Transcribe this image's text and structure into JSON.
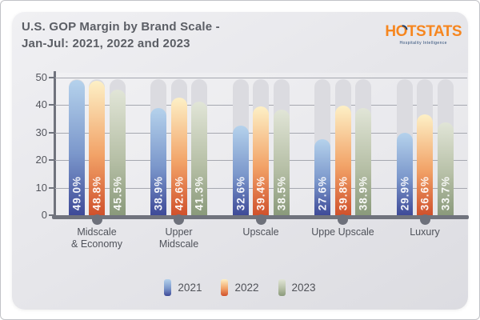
{
  "header": {
    "title_line1": "U.S. GOP Margin by Brand Scale -",
    "title_line2": "Jan-Jul: 2021, 2022 and 2023"
  },
  "logo": {
    "name": "HOTSTATS",
    "parts": {
      "left": "H",
      "o": "O",
      "right": "TSTATS"
    },
    "tagline": "Hospitality Intelligence",
    "orange": "#f6861f",
    "navy": "#1c3f6e"
  },
  "chart_data": {
    "type": "bar",
    "title": "U.S. GOP Margin by Brand Scale - Jan-Jul: 2021, 2022 and 2023",
    "categories": [
      "Midscale & Economy",
      "Upper Midscale",
      "Upscale",
      "Uppe Upscale",
      "Luxury"
    ],
    "category_lines": [
      [
        "Midscale",
        "& Economy"
      ],
      [
        "Upper",
        "Midscale"
      ],
      [
        "Upscale"
      ],
      [
        "Uppe Upscale"
      ],
      [
        "Luxury"
      ]
    ],
    "series": [
      {
        "name": "2021",
        "values": [
          49.0,
          38.9,
          32.6,
          27.6,
          29.9
        ],
        "gradient_top": "#b5d2ec",
        "gradient_mid": "#7b97cb",
        "gradient_bottom": "#3e4a98"
      },
      {
        "name": "2022",
        "values": [
          48.8,
          42.6,
          39.4,
          39.8,
          36.6
        ],
        "gradient_top": "#fdf0c6",
        "gradient_mid": "#f2a368",
        "gradient_bottom": "#d0512c"
      },
      {
        "name": "2023",
        "values": [
          45.5,
          41.3,
          38.5,
          38.9,
          33.7
        ],
        "gradient_top": "#e1e5d7",
        "gradient_mid": "#b7c0a7",
        "gradient_bottom": "#8a9a7b"
      }
    ],
    "value_suffix": "%",
    "value_decimals": 1,
    "ylim": [
      0,
      50
    ],
    "yticks": [
      0,
      10,
      20,
      30,
      40,
      50
    ],
    "grid": true,
    "legend_position": "bottom",
    "track_color": "#dbdbe0",
    "axis_color": "#70737d"
  }
}
